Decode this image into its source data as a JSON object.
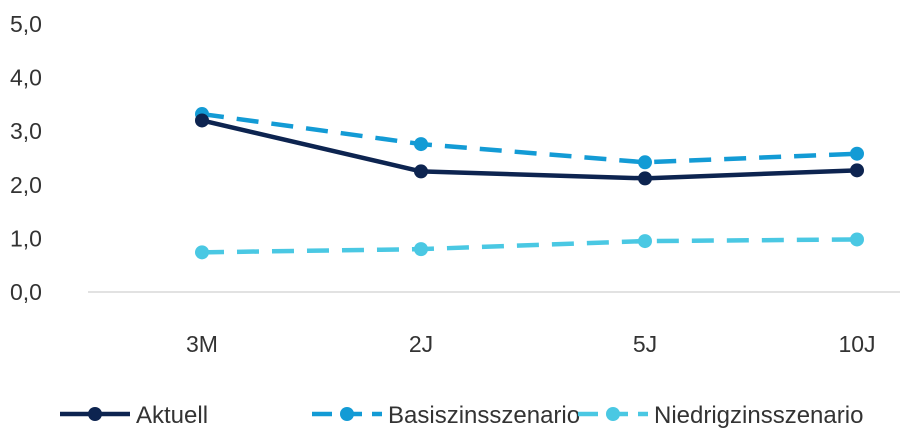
{
  "chart_data": {
    "type": "line",
    "categories": [
      "3M",
      "2J",
      "5J",
      "10J"
    ],
    "series": [
      {
        "name": "Aktuell",
        "values": [
          3.2,
          2.25,
          2.12,
          2.27
        ],
        "color": "#0d2450",
        "dash": "solid"
      },
      {
        "name": "Basiszinsszenario",
        "values": [
          3.32,
          2.76,
          2.42,
          2.58
        ],
        "color": "#139bd5",
        "dash": "dashed"
      },
      {
        "name": "Niedrigzinsszenario",
        "values": [
          0.74,
          0.8,
          0.95,
          0.98
        ],
        "color": "#4ac8e3",
        "dash": "dashed"
      }
    ],
    "yticks": [
      "0,0",
      "1,0",
      "2,0",
      "3,0",
      "4,0",
      "5,0"
    ],
    "ylim": [
      0,
      5
    ],
    "grid": false,
    "legend": "bottom",
    "title": "",
    "xlabel": "",
    "ylabel": ""
  }
}
